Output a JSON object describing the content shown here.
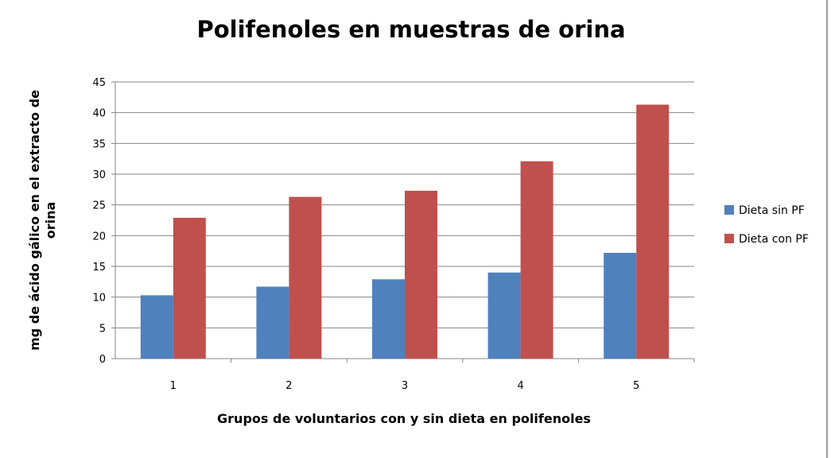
{
  "chart_data": {
    "type": "bar",
    "title": "Polifenoles en muestras de orina",
    "xlabel": "Grupos de voluntarios  con y sin dieta en polifenoles",
    "ylabel_lines": [
      "mg de ácido gálico en el extracto de",
      "orina"
    ],
    "categories": [
      "1",
      "2",
      "3",
      "4",
      "5"
    ],
    "ylim": [
      0,
      45
    ],
    "yticks": [
      0,
      5,
      10,
      15,
      20,
      25,
      30,
      35,
      40,
      45
    ],
    "grid": true,
    "legend_position": "right",
    "series": [
      {
        "name": "Dieta sin PF",
        "color": "#4F81BD",
        "values": [
          10.3,
          11.7,
          12.9,
          14.0,
          17.2
        ]
      },
      {
        "name": "Dieta con PF",
        "color": "#C0504D",
        "values": [
          22.9,
          26.3,
          27.3,
          32.1,
          41.3
        ]
      }
    ]
  }
}
